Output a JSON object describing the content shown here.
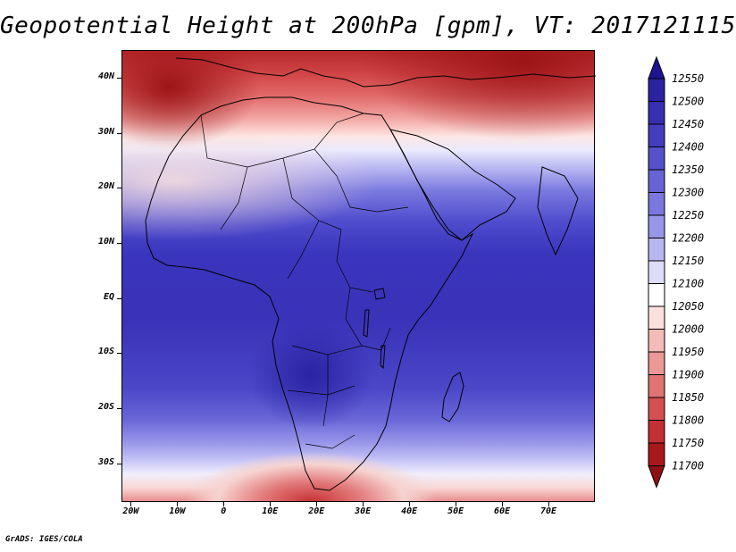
{
  "title": "Geopotential Height at 200hPa [gpm], VT: 2017121115",
  "credit": "GrADS: IGES/COLA",
  "map": {
    "region": "Africa",
    "lat_labels": [
      "40N",
      "30N",
      "20N",
      "10N",
      "EQ",
      "10S",
      "20S",
      "30S"
    ],
    "lon_labels": [
      "20W",
      "10W",
      "0",
      "10E",
      "20E",
      "30E",
      "40E",
      "50E",
      "60E",
      "70E"
    ],
    "lat_values": [
      40,
      30,
      20,
      10,
      0,
      -10,
      -20,
      -30
    ],
    "lon_values": [
      -20,
      -10,
      0,
      10,
      20,
      30,
      40,
      50,
      60,
      70
    ],
    "lat_range": [
      -37,
      45
    ],
    "lon_range": [
      -22,
      80
    ]
  },
  "colorbar": {
    "labels": [
      "12550",
      "12500",
      "12450",
      "12400",
      "12350",
      "12300",
      "12250",
      "12200",
      "12150",
      "12100",
      "12050",
      "12000",
      "11950",
      "11900",
      "11850",
      "11800",
      "11750",
      "11700"
    ],
    "colors": [
      "#1c1490",
      "#2a22a0",
      "#3630b0",
      "#433dbf",
      "#5451ca",
      "#6663d4",
      "#7a78de",
      "#9896e9",
      "#b8b7f1",
      "#dcdcf8",
      "#ffffff",
      "#fbe0dd",
      "#f4bcb8",
      "#eb9896",
      "#e07473",
      "#d44f50",
      "#c23133",
      "#a8191c",
      "#8e1013"
    ]
  }
}
